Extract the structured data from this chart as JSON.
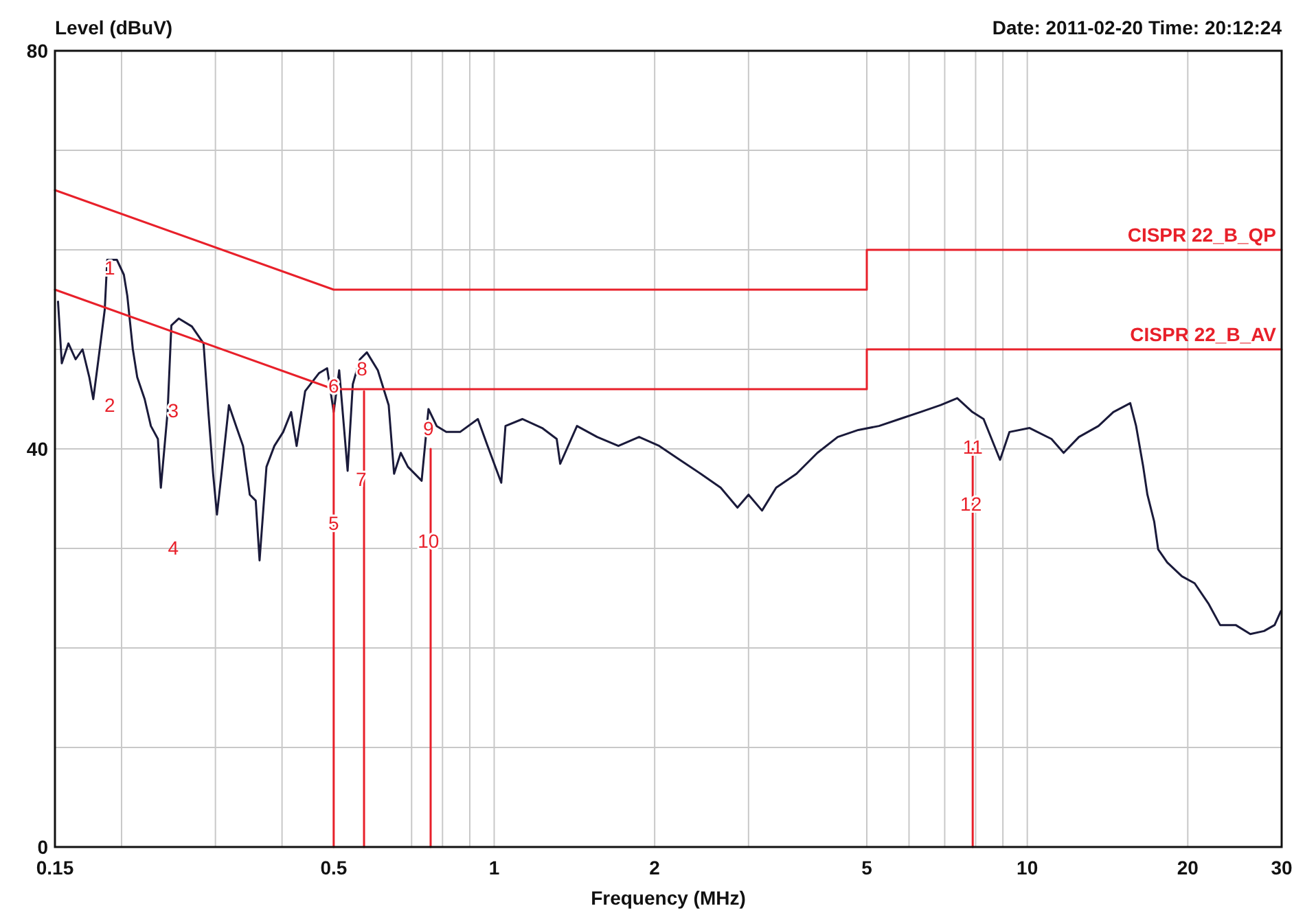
{
  "chart_data": {
    "type": "line",
    "ylabel": "Level (dBuV)",
    "xlabel": "Frequency (MHz)",
    "annotations": [
      "Date: 2011-02-20  Time: 20:12:24",
      {
        "text": "1",
        "x": 0.19,
        "y": 58
      },
      "2",
      {
        "text": "3",
        "x": 0.25,
        "y": 43.7
      },
      "4",
      {
        "text": "5",
        "x": 0.5,
        "y": 32.4
      },
      {
        "text": "6",
        "x": 0.5,
        "y": 46.2
      },
      {
        "text": "7",
        "x": 0.563,
        "y": 36.8
      },
      {
        "text": "8",
        "x": 0.565,
        "y": 47.9
      },
      {
        "text": "9",
        "x": 0.753,
        "y": 41.9
      },
      {
        "text": "10",
        "x": 0.753,
        "y": 30.6
      },
      {
        "text": "11",
        "x": 7.9,
        "y": 40
      },
      {
        "text": "12",
        "x": 7.84,
        "y": 34.3
      }
    ],
    "log": "x",
    "grid": true,
    "xlim": [
      0.15,
      30
    ],
    "ylim": [
      0,
      80
    ],
    "xticks": [
      0.15,
      {
        "value": 0.2,
        "label": null
      },
      {
        "value": 0.3,
        "label": null
      },
      {
        "value": 0.4,
        "label": null
      },
      0.5,
      {
        "value": 0.7,
        "label": null
      },
      {
        "value": 0.8,
        "label": null
      },
      {
        "value": 0.9,
        "label": null
      },
      1,
      2,
      {
        "value": 3,
        "label": null
      },
      5,
      {
        "value": 6,
        "label": null
      },
      {
        "value": 7,
        "label": null
      },
      {
        "value": 8,
        "label": null
      },
      {
        "value": 9,
        "label": null
      },
      10,
      20,
      30
    ],
    "yticks": [
      0,
      {
        "value": 10,
        "label": null
      },
      {
        "value": 20,
        "label": null
      },
      {
        "value": 30,
        "label": null
      },
      40,
      {
        "value": 50,
        "label": null
      },
      {
        "value": 60,
        "label": null
      },
      {
        "value": 70,
        "label": null
      },
      80
    ],
    "series": [
      {
        "color": "#1a1a3a",
        "x": [
          0.152,
          0.1545,
          0.159,
          0.164,
          0.169,
          0.174,
          0.177,
          0.181,
          0.186,
          0.188,
          0.196,
          0.202,
          0.205,
          0.21,
          0.214,
          0.221,
          0.227,
          0.234,
          0.237,
          0.244,
          0.248,
          0.256,
          0.271,
          0.285,
          0.291,
          0.297,
          0.302,
          0.309,
          0.318,
          0.328,
          0.338,
          0.348,
          0.357,
          0.363,
          0.374,
          0.387,
          0.402,
          0.416,
          0.426,
          0.442,
          0.469,
          0.486,
          0.5,
          0.512,
          0.531,
          0.543,
          0.56,
          0.577,
          0.605,
          0.634,
          0.649,
          0.668,
          0.689,
          0.731,
          0.753,
          0.78,
          0.813,
          0.863,
          0.932,
          0.972,
          1.031,
          1.05,
          1.13,
          1.23,
          1.31,
          1.33,
          1.43,
          1.56,
          1.71,
          1.87,
          2.04,
          2.23,
          2.44,
          2.66,
          2.86,
          3,
          3.18,
          3.38,
          3.69,
          4.04,
          4.41,
          4.82,
          5.27,
          5.76,
          6.3,
          6.88,
          7.39,
          7.89,
          8.28,
          8.89,
          9.26,
          10.1,
          11.1,
          11.7,
          12.5,
          13.6,
          14.5,
          15.6,
          16,
          16.5,
          16.8,
          17.3,
          17.6,
          18.3,
          19.5,
          20.6,
          21.9,
          23,
          24.6,
          26.2,
          27.8,
          29.1,
          29.9
        ],
        "values": [
          54.8,
          48.6,
          50.6,
          49,
          50,
          47.2,
          45,
          49,
          54,
          59,
          59,
          57.5,
          55.4,
          50,
          47.2,
          45,
          42.3,
          41,
          36.1,
          43.7,
          52.4,
          53.1,
          52.3,
          50.6,
          43.7,
          37.5,
          33.4,
          38.2,
          44.4,
          42.3,
          40.3,
          35.4,
          34.8,
          28.8,
          38.2,
          40.3,
          41.7,
          43.7,
          40.3,
          45.8,
          47.6,
          48.1,
          43.7,
          47.9,
          37.8,
          46.5,
          49,
          49.7,
          47.9,
          44.4,
          37.5,
          39.6,
          38.2,
          36.8,
          44,
          42.3,
          41.7,
          41.7,
          43,
          40.3,
          36.6,
          42.3,
          43,
          42.1,
          41,
          38.5,
          42.3,
          41.2,
          40.3,
          41.2,
          40.3,
          38.9,
          37.5,
          36.1,
          34.1,
          35.4,
          33.8,
          36.1,
          37.5,
          39.6,
          41.2,
          41.9,
          42.3,
          43,
          43.7,
          44.4,
          45.1,
          43.7,
          43,
          38.9,
          41.7,
          42.1,
          41,
          39.6,
          41.2,
          42.3,
          43.7,
          44.6,
          42.3,
          38.2,
          35.4,
          32.7,
          29.9,
          28.6,
          27.2,
          26.5,
          24.4,
          22.3,
          22.3,
          21.4,
          21.7,
          22.3,
          23.7
        ]
      },
      {
        "name": "CISPR 22_B_QP",
        "color": "#e8202a",
        "x": [
          0.15,
          0.5,
          5,
          5,
          30
        ],
        "values": [
          66,
          56,
          56,
          60,
          60
        ]
      },
      {
        "name": "CISPR 22_B_AV",
        "color": "#e8202a",
        "x": [
          0.15,
          0.5,
          5,
          5,
          30
        ],
        "values": [
          56,
          46,
          46,
          50,
          50
        ]
      },
      {
        "color": "#e8202a",
        "x": [
          0.5,
          0.5
        ],
        "values": [
          0,
          44.4
        ]
      },
      {
        "color": "#e8202a",
        "x": [
          0.57,
          0.57
        ],
        "values": [
          0,
          45.8
        ]
      },
      {
        "color": "#e8202a",
        "x": [
          0.76,
          0.76
        ],
        "values": [
          0,
          40
        ]
      },
      {
        "color": "#e8202a",
        "x": [
          7.9,
          7.9
        ],
        "values": [
          0,
          40
        ]
      }
    ]
  }
}
